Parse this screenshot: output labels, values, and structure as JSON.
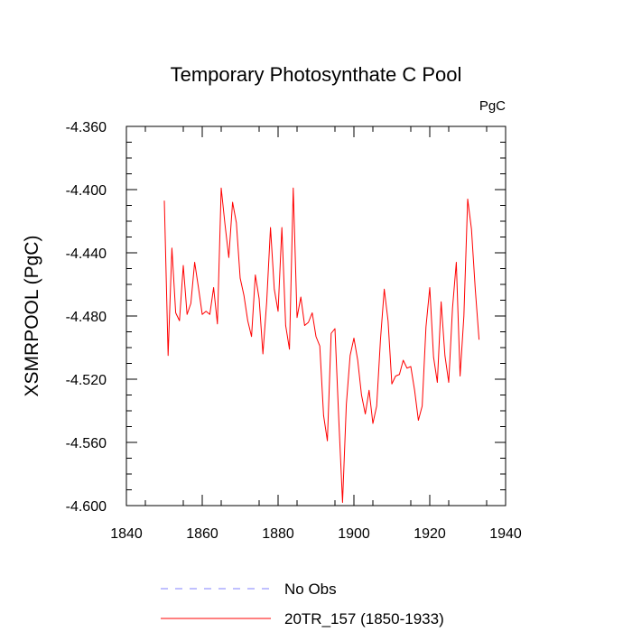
{
  "chart_data": {
    "type": "line",
    "title": "Temporary Photosynthate C Pool",
    "units_label": "PgC",
    "xlabel": "",
    "ylabel": "XSMRPOOL  (PgC)",
    "xlim": [
      1840,
      1940
    ],
    "ylim": [
      -4.6,
      -4.36
    ],
    "x_ticks": [
      1840,
      1860,
      1880,
      1900,
      1920,
      1940
    ],
    "x_tick_labels": [
      "1840",
      "1860",
      "1880",
      "1900",
      "1920",
      "1940"
    ],
    "y_ticks": [
      -4.36,
      -4.4,
      -4.44,
      -4.48,
      -4.52,
      -4.56,
      -4.6
    ],
    "y_tick_labels": [
      "-4.360",
      "-4.400",
      "-4.440",
      "-4.480",
      "-4.520",
      "-4.560",
      "-4.600"
    ],
    "legend": [
      {
        "label": "No Obs",
        "color": "#8080ff",
        "style": "dashed"
      },
      {
        "label": "20TR_157 (1850-1933)",
        "color": "#ff0000",
        "style": "solid"
      }
    ],
    "series": [
      {
        "name": "20TR_157 (1850-1933)",
        "color": "#ff0000",
        "x": [
          1850,
          1851,
          1852,
          1853,
          1854,
          1855,
          1856,
          1857,
          1858,
          1859,
          1860,
          1861,
          1862,
          1863,
          1864,
          1865,
          1866,
          1867,
          1868,
          1869,
          1870,
          1871,
          1872,
          1873,
          1874,
          1875,
          1876,
          1877,
          1878,
          1879,
          1880,
          1881,
          1882,
          1883,
          1884,
          1885,
          1886,
          1887,
          1888,
          1889,
          1890,
          1891,
          1892,
          1893,
          1894,
          1895,
          1896,
          1897,
          1898,
          1899,
          1900,
          1901,
          1902,
          1903,
          1904,
          1905,
          1906,
          1907,
          1908,
          1909,
          1910,
          1911,
          1912,
          1913,
          1914,
          1915,
          1916,
          1917,
          1918,
          1919,
          1920,
          1921,
          1922,
          1923,
          1924,
          1925,
          1926,
          1927,
          1928,
          1929,
          1930,
          1931,
          1932,
          1933
        ],
        "values": [
          -4.407,
          -4.505,
          -4.437,
          -4.478,
          -4.483,
          -4.448,
          -4.479,
          -4.472,
          -4.446,
          -4.462,
          -4.479,
          -4.477,
          -4.479,
          -4.462,
          -4.485,
          -4.399,
          -4.422,
          -4.443,
          -4.408,
          -4.421,
          -4.456,
          -4.467,
          -4.483,
          -4.493,
          -4.454,
          -4.469,
          -4.504,
          -4.471,
          -4.424,
          -4.463,
          -4.477,
          -4.424,
          -4.486,
          -4.501,
          -4.399,
          -4.481,
          -4.468,
          -4.486,
          -4.484,
          -4.478,
          -4.493,
          -4.499,
          -4.543,
          -4.559,
          -4.491,
          -4.488,
          -4.545,
          -4.598,
          -4.536,
          -4.505,
          -4.494,
          -4.508,
          -4.53,
          -4.542,
          -4.527,
          -4.548,
          -4.537,
          -4.495,
          -4.463,
          -4.483,
          -4.523,
          -4.518,
          -4.517,
          -4.508,
          -4.513,
          -4.512,
          -4.527,
          -4.546,
          -4.537,
          -4.487,
          -4.462,
          -4.506,
          -4.522,
          -4.471,
          -4.505,
          -4.522,
          -4.475,
          -4.446,
          -4.518,
          -4.48,
          -4.406,
          -4.425,
          -4.463,
          -4.495
        ]
      },
      {
        "name": "No Obs",
        "color": "#8080ff",
        "x": [],
        "values": []
      }
    ]
  }
}
